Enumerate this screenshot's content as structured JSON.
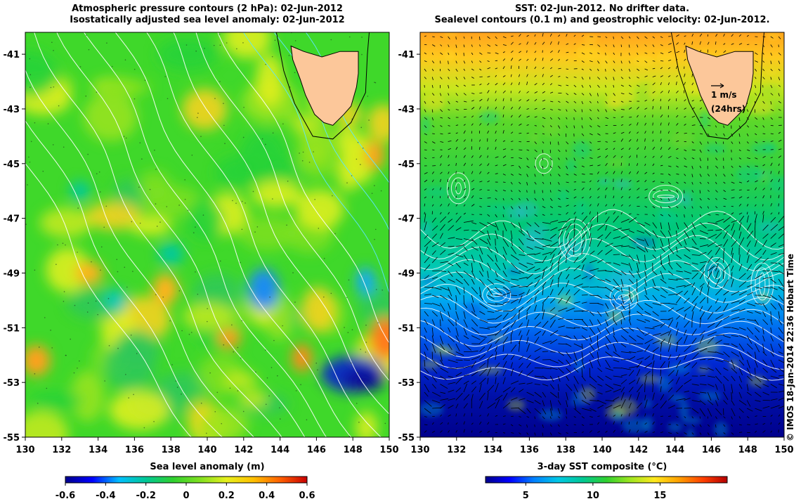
{
  "left_panel": {
    "title_line1": "Atmospheric pressure contours (2 hPa): 02-Jun-2012",
    "title_line2": "Isostatically adjusted sea level anomaly: 02-Jun-2012",
    "xlabel": "Sea level anomaly (m)",
    "colorbar": {
      "min": -0.6,
      "max": 0.6,
      "tick_labels": [
        "-0.6",
        "-0.4",
        "-0.2",
        "0",
        "0.2",
        "0.4",
        "0.6"
      ],
      "colors": [
        "#00008c",
        "#0000ff",
        "#00bfff",
        "#00c896",
        "#2fd02f",
        "#7fe020",
        "#e6f01e",
        "#ffc000",
        "#ff6000",
        "#c80000"
      ]
    },
    "palette_note_colors": {
      "background_green": "#3fd82a",
      "white_contour": "#ffffff",
      "cyan_contour": "#5ee6ff"
    }
  },
  "right_panel": {
    "title_line1": "SST: 02-Jun-2012. No drifter data.",
    "title_line2": "Sealevel contours (0.1 m) and geostrophic velocity: 02-Jun-2012.",
    "xlabel": "3-day SST composite (°C)",
    "velocity_key_label": "1 m/s",
    "velocity_key_sublabel": "(24hrs)",
    "colorbar": {
      "min": 2,
      "max": 20,
      "tick_labels": [
        "5",
        "10",
        "15"
      ],
      "tick_values": [
        5,
        10,
        15
      ],
      "colors": [
        "#00008c",
        "#0000ff",
        "#0080ff",
        "#00c8e6",
        "#00c896",
        "#2fd02f",
        "#a0e620",
        "#ffe81e",
        "#ffa000",
        "#ff4000",
        "#b40000"
      ]
    }
  },
  "map": {
    "x_ticks": [
      "130",
      "132",
      "134",
      "136",
      "138",
      "140",
      "142",
      "144",
      "146",
      "148",
      "150"
    ],
    "y_ticks": [
      "-41",
      "-43",
      "-45",
      "-47",
      "-49",
      "-51",
      "-53",
      "-55"
    ],
    "lon_range": [
      130,
      150
    ],
    "lat_range": [
      -55,
      -40.2
    ],
    "land_color": "#fcc79a",
    "coast_color": "#000000"
  },
  "credit": "© IMOS 18-Jan-2014 22:36 Hobart Time"
}
